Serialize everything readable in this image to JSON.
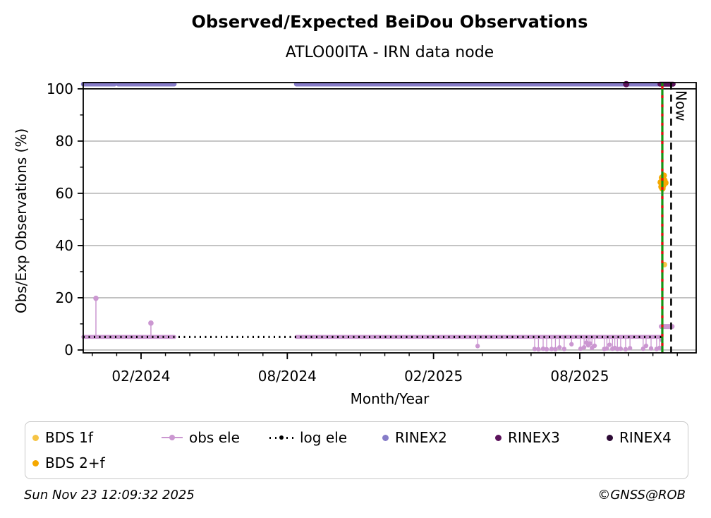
{
  "header": {
    "title": "Observed/Expected BeiDou Observations",
    "subtitle": "ATLO00ITA - IRN data node"
  },
  "footer": {
    "timestamp": "Sun Nov 23 12:09:32 2025",
    "credit": "©GNSS@ROB"
  },
  "colors": {
    "rinex2": "#867CC8",
    "rinex3": "#5C135C",
    "rinex4": "#2D0A35",
    "obs_ele": "#CB97D1",
    "log_ele": "#000000",
    "bds_1f": "#F6C445",
    "bds_2f": "#F5A800",
    "event_green": "#149414",
    "event_red": "#E01010",
    "grid": "#ABABAB",
    "axis": "#000000"
  },
  "legend": {
    "rows": [
      [
        {
          "label": "BDS 1f",
          "marker": "dot",
          "color": "#F6C445"
        },
        {
          "label": "obs ele",
          "marker": "line-dot",
          "color": "#CB97D1"
        },
        {
          "label": "log ele",
          "marker": "dotted-line",
          "color": "#000000"
        },
        {
          "label": "RINEX2",
          "marker": "dot",
          "color": "#867CC8"
        },
        {
          "label": "RINEX3",
          "marker": "dot",
          "color": "#5C135C"
        },
        {
          "label": "RINEX4",
          "marker": "dot",
          "color": "#2D0A35"
        }
      ],
      [
        {
          "label": "BDS 2+f",
          "marker": "dot",
          "color": "#F5A800"
        }
      ]
    ]
  },
  "chart_data": {
    "type": "line",
    "title": "Observed/Expected BeiDou Observations",
    "subtitle": "ATLO00ITA - IRN data node",
    "xlabel": "Month/Year",
    "ylabel": "Obs/Exp Observations (%)",
    "xlim": [
      2023.8856,
      2025.9813
    ],
    "ylim": [
      -1.1,
      102.4
    ],
    "x_major_ticks": [
      {
        "x": 2024.0833,
        "label": "02/2024"
      },
      {
        "x": 2024.5833,
        "label": "08/2024"
      },
      {
        "x": 2025.0833,
        "label": "02/2025"
      },
      {
        "x": 2025.5833,
        "label": "08/2025"
      }
    ],
    "x_minor_start": 2023.9167,
    "x_minor_step": 0.0833333,
    "y_major_ticks": [
      {
        "y": 0,
        "label": "0"
      },
      {
        "y": 20,
        "label": "20"
      },
      {
        "y": 40,
        "label": "40"
      },
      {
        "y": 60,
        "label": "60"
      },
      {
        "y": 80,
        "label": "80"
      },
      {
        "y": 100,
        "label": "100"
      }
    ],
    "y_minor_ticks": [
      10,
      30,
      50,
      70,
      90
    ],
    "gridlines_y": [
      0,
      20,
      40,
      60,
      80
    ],
    "ref_line_y": 100,
    "now_line": {
      "x": 2025.8955,
      "label": "Now",
      "color": "#000000"
    },
    "event_line": {
      "x": 2025.8655,
      "color_main": "#149414",
      "color_dash": "#E01010"
    },
    "series": [
      {
        "name": "obs ele",
        "type": "stem-line",
        "color": "#CB97D1",
        "base_y": 5,
        "line_width": 5.5,
        "segments": [
          [
            2023.8856,
            2024.197
          ],
          [
            2024.614,
            2025.862
          ]
        ],
        "spikes": [
          {
            "x": 2023.929,
            "y": 19.8
          },
          {
            "x": 2024.117,
            "y": 10.3
          }
        ],
        "dips": [
          {
            "x": 2025.234,
            "y": 1.5
          },
          {
            "x": 2025.429,
            "y": 0.4
          },
          {
            "x": 2025.442,
            "y": 0.3
          },
          {
            "x": 2025.458,
            "y": 0.5
          },
          {
            "x": 2025.47,
            "y": 0.3
          },
          {
            "x": 2025.487,
            "y": 0.4
          },
          {
            "x": 2025.5,
            "y": 0.3
          },
          {
            "x": 2025.514,
            "y": 1.0
          },
          {
            "x": 2025.53,
            "y": 0.4
          },
          {
            "x": 2025.555,
            "y": 2.2
          },
          {
            "x": 2025.586,
            "y": 0.5
          },
          {
            "x": 2025.598,
            "y": 1.0
          },
          {
            "x": 2025.606,
            "y": 2.8
          },
          {
            "x": 2025.612,
            "y": 1.8
          },
          {
            "x": 2025.618,
            "y": 2.5
          },
          {
            "x": 2025.625,
            "y": 0.8
          },
          {
            "x": 2025.634,
            "y": 1.6
          },
          {
            "x": 2025.667,
            "y": 0.4
          },
          {
            "x": 2025.676,
            "y": 0.6
          },
          {
            "x": 2025.685,
            "y": 2.0
          },
          {
            "x": 2025.695,
            "y": 0.5
          },
          {
            "x": 2025.703,
            "y": 0.8
          },
          {
            "x": 2025.712,
            "y": 0.4
          },
          {
            "x": 2025.723,
            "y": 0.5
          },
          {
            "x": 2025.74,
            "y": 0.3
          },
          {
            "x": 2025.755,
            "y": 0.7
          },
          {
            "x": 2025.8,
            "y": 0.5
          },
          {
            "x": 2025.81,
            "y": 1.6
          },
          {
            "x": 2025.827,
            "y": 0.6
          },
          {
            "x": 2025.846,
            "y": 0.4
          },
          {
            "x": 2025.856,
            "y": 0.8
          },
          {
            "x": 2025.862,
            "y": 4.0
          }
        ],
        "high_segment": {
          "x0": 2025.862,
          "x1": 2025.899,
          "y": 9.0,
          "line_width": 7
        }
      },
      {
        "name": "log ele",
        "type": "dotted-line",
        "color": "#000000",
        "y": 5,
        "segments": [
          [
            2023.8856,
            2025.864
          ]
        ]
      },
      {
        "name": "RINEX2",
        "type": "band",
        "color": "#867CC8",
        "y": 101.8,
        "line_width": 6.5,
        "segments": [
          [
            2023.8856,
            2023.993
          ],
          [
            2024.005,
            2024.197
          ],
          [
            2024.614,
            2025.859
          ]
        ]
      },
      {
        "name": "RINEX3",
        "type": "band",
        "color": "#5C135C",
        "y": 101.8,
        "line_width": 7,
        "segments": [
          [
            2025.8575,
            2025.9025
          ]
        ],
        "points": [
          {
            "x": 2025.742,
            "y": 101.8,
            "r": 4.5
          }
        ]
      },
      {
        "name": "RINEX4",
        "type": "points",
        "color": "#2D0A35",
        "points": []
      },
      {
        "name": "BDS 1f",
        "type": "points",
        "color": "#F6C445",
        "points": [
          {
            "x": 2025.8725,
            "y": 32.7,
            "r": 4
          },
          {
            "x": 2025.8635,
            "y": 64.8,
            "r": 4
          }
        ]
      },
      {
        "name": "BDS 2+f",
        "type": "points",
        "color": "#F5A800",
        "points": [
          {
            "x": 2025.86,
            "y": 64.2,
            "r": 4.5
          },
          {
            "x": 2025.8645,
            "y": 66.0,
            "r": 4.5
          },
          {
            "x": 2025.8685,
            "y": 63.0,
            "r": 4.5
          },
          {
            "x": 2025.8725,
            "y": 65.0,
            "r": 4.5
          },
          {
            "x": 2025.876,
            "y": 64.0,
            "r": 4.5
          },
          {
            "x": 2025.866,
            "y": 61.8,
            "r": 4.5
          },
          {
            "x": 2025.8705,
            "y": 66.8,
            "r": 4.5
          },
          {
            "x": 2025.8625,
            "y": 62.5,
            "r": 4.5
          }
        ]
      }
    ]
  }
}
